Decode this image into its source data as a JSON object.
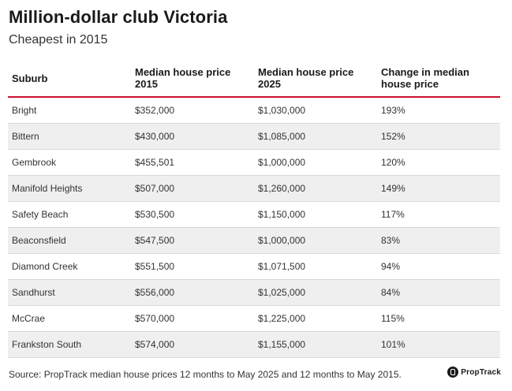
{
  "title": "Million-dollar club Victoria",
  "subtitle": "Cheapest in 2015",
  "table": {
    "headers": [
      "Suburb",
      "Median house price 2015",
      "Median house price 2025",
      "Change in median house price"
    ],
    "rows": [
      [
        "Bright",
        "$352,000",
        "$1,030,000",
        "193%"
      ],
      [
        "Bittern",
        "$430,000",
        "$1,085,000",
        "152%"
      ],
      [
        "Gembrook",
        "$455,501",
        "$1,000,000",
        "120%"
      ],
      [
        "Manifold Heights",
        "$507,000",
        "$1,260,000",
        "149%"
      ],
      [
        "Safety Beach",
        "$530,500",
        "$1,150,000",
        "117%"
      ],
      [
        "Beaconsfield",
        "$547,500",
        "$1,000,000",
        "83%"
      ],
      [
        "Diamond Creek",
        "$551,500",
        "$1,071,500",
        "94%"
      ],
      [
        "Sandhurst",
        "$556,000",
        "$1,025,000",
        "84%"
      ],
      [
        "McCrae",
        "$570,000",
        "$1,225,000",
        "115%"
      ],
      [
        "Frankston South",
        "$574,000",
        "$1,155,000",
        "101%"
      ]
    ]
  },
  "source": "Source: PropTrack median house prices 12 months to May 2025 and 12 months to May 2015.",
  "brand": {
    "name": "PropTrack",
    "icon": "proptrack-logo-icon"
  },
  "colors": {
    "accent_rule": "#c8102e",
    "stripe": "#efefef"
  }
}
